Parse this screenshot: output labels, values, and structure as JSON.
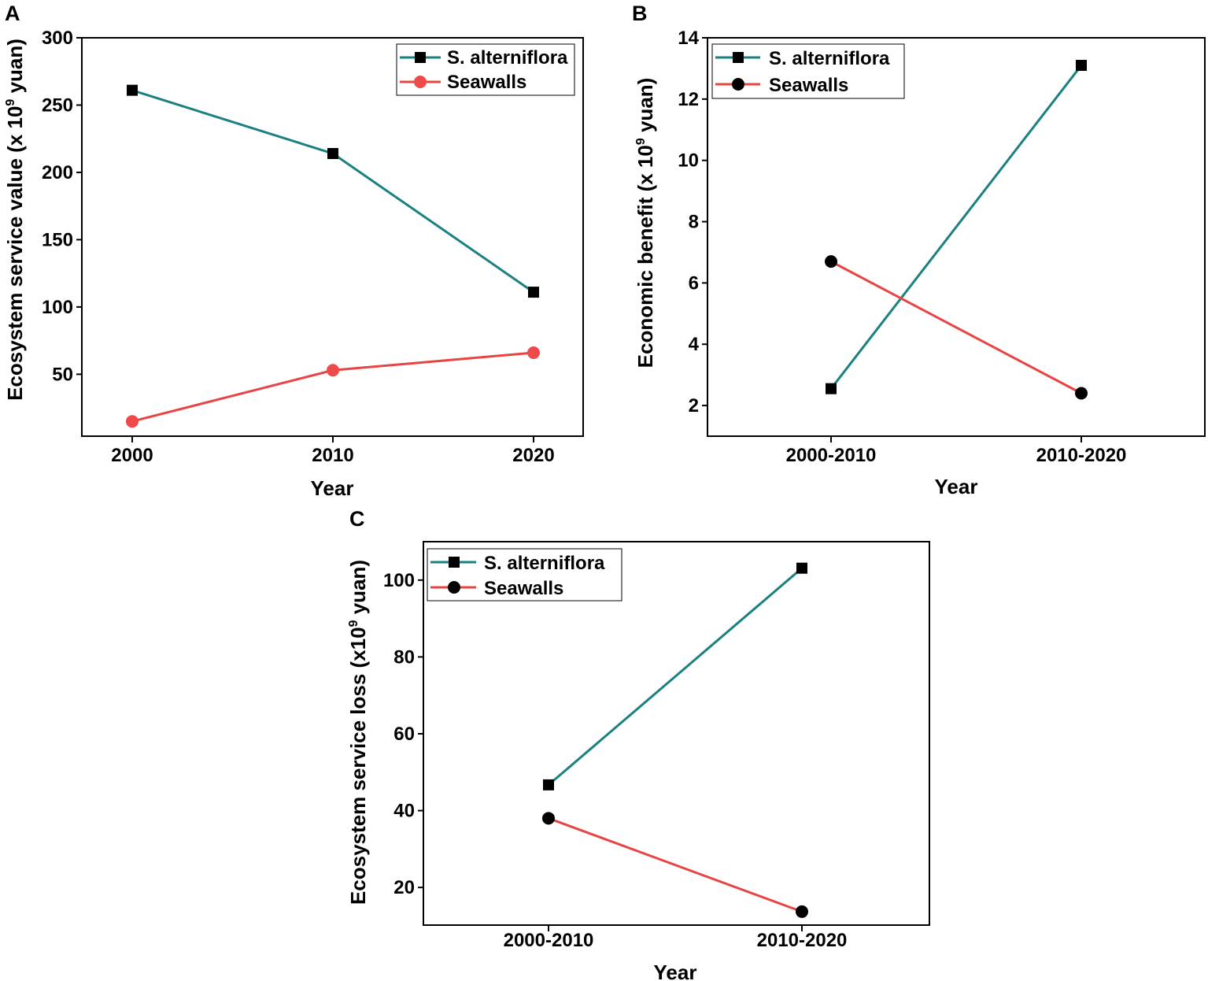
{
  "colors": {
    "teal": "#1a8080",
    "red": "#e84444",
    "red_marker": "#ee4a4a",
    "black": "#000000"
  },
  "chart_data": [
    {
      "panel": "A",
      "type": "line",
      "title": "",
      "xlabel": "Year",
      "ylabel_main": "Ecosystem service value (x 10",
      "ylabel_sup": "9",
      "ylabel_tail": " yuan)",
      "categories": [
        "2000",
        "2010",
        "2020"
      ],
      "ylim": [
        4,
        300
      ],
      "yticks": [
        50,
        100,
        150,
        200,
        250,
        300
      ],
      "legend_position": "top-right",
      "series": [
        {
          "name": "S. alterniflora",
          "marker": "square",
          "color": "#1a8080",
          "marker_color": "#000000",
          "values": [
            261,
            214,
            111
          ]
        },
        {
          "name": "Seawalls",
          "marker": "circle",
          "color": "#e84444",
          "marker_color": "#ee4a4a",
          "values": [
            15,
            53,
            66
          ]
        }
      ]
    },
    {
      "panel": "B",
      "type": "line",
      "title": "",
      "xlabel": "Year",
      "ylabel_main": "Economic benefit (x 10",
      "ylabel_sup": "9",
      "ylabel_tail": " yuan)",
      "categories": [
        "2000-2010",
        "2010-2020"
      ],
      "ylim": [
        1.0,
        14
      ],
      "yticks": [
        2,
        4,
        6,
        8,
        10,
        12,
        14
      ],
      "legend_position": "top-left",
      "series": [
        {
          "name": "S. alterniflora",
          "marker": "square",
          "color": "#1a8080",
          "marker_color": "#000000",
          "values": [
            2.55,
            13.1
          ]
        },
        {
          "name": "Seawalls",
          "marker": "circle",
          "color": "#e84444",
          "marker_color": "#000000",
          "values": [
            6.7,
            2.4
          ]
        }
      ]
    },
    {
      "panel": "C",
      "type": "line",
      "title": "",
      "xlabel": "Year",
      "ylabel_main": "Ecosystem service loss (x10",
      "ylabel_sup": "9",
      "ylabel_tail": " yuan)",
      "categories": [
        "2000-2010",
        "2010-2020"
      ],
      "ylim": [
        10.2,
        110
      ],
      "yticks": [
        20,
        40,
        60,
        80,
        100
      ],
      "legend_position": "top-left",
      "series": [
        {
          "name": "S. alterniflora",
          "marker": "square",
          "color": "#1a8080",
          "marker_color": "#000000",
          "values": [
            46.7,
            103.1
          ]
        },
        {
          "name": "Seawalls",
          "marker": "circle",
          "color": "#e84444",
          "marker_color": "#000000",
          "values": [
            38,
            13.7
          ]
        }
      ]
    }
  ]
}
